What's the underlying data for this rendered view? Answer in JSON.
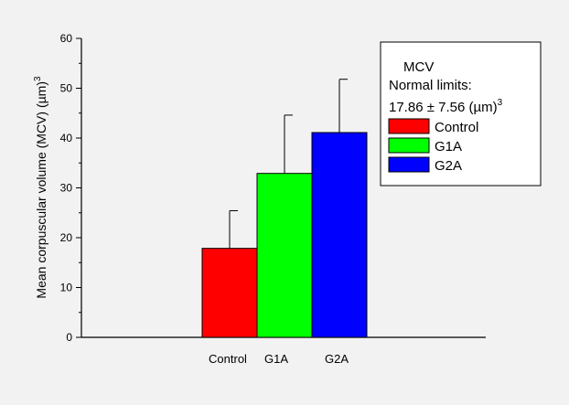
{
  "chart_data": {
    "type": "bar",
    "categories": [
      "Control",
      "G1A",
      "G2A"
    ],
    "values": [
      17.86,
      32.9,
      41.1
    ],
    "errors": [
      7.56,
      11.7,
      10.7
    ],
    "colors": [
      "#ff0000",
      "#00ff00",
      "#0000ff"
    ],
    "ylabel": "Mean corpuscular volume (MCV) (µm)",
    "ylabel_sup": "3",
    "ylim": [
      0,
      60
    ],
    "yticks": [
      "0",
      "10",
      "20",
      "30",
      "40",
      "50",
      "60"
    ],
    "grid": false,
    "legend": {
      "placement": "top-right",
      "title": "MCV",
      "subtitle": "Normal limits:",
      "range_text": "17.86 ± 7.56 (µm)",
      "range_sup": "3",
      "entries": [
        "Control",
        "G1A",
        "G2A"
      ]
    }
  }
}
